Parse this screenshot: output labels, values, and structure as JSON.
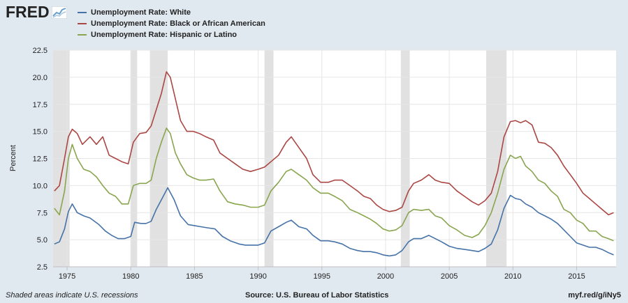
{
  "header": {
    "logo_text": "FRED",
    "logo_icon": "chart-line-icon"
  },
  "footer": {
    "recession_note": "Shaded areas indicate U.S. recessions",
    "source": "Source: U.S. Bureau of Labor Statistics",
    "short_url": "myf.red/g/iNy5"
  },
  "chart_data": {
    "type": "line",
    "title": "",
    "xlabel": "",
    "ylabel": "Percent",
    "xlim": [
      1973.9,
      2018.1
    ],
    "ylim": [
      2.5,
      22.5
    ],
    "yticks": [
      "2.5",
      "5.0",
      "7.5",
      "10.0",
      "12.5",
      "15.0",
      "17.5",
      "20.0",
      "22.5"
    ],
    "xticks": [
      "1975",
      "1980",
      "1985",
      "1990",
      "1995",
      "2000",
      "2005",
      "2010",
      "2015"
    ],
    "grid": true,
    "legend_position": "top-left",
    "recessions": [
      [
        1973.9,
        1975.2
      ],
      [
        1980.0,
        1980.5
      ],
      [
        1981.5,
        1982.9
      ],
      [
        1990.5,
        1991.2
      ],
      [
        2001.2,
        2001.9
      ],
      [
        2007.9,
        2009.5
      ]
    ],
    "series": [
      {
        "name": "Unemployment Rate: White",
        "color": "#4572a7",
        "points": [
          [
            1974.0,
            4.6
          ],
          [
            1974.4,
            4.8
          ],
          [
            1974.8,
            6.0
          ],
          [
            1975.1,
            7.6
          ],
          [
            1975.4,
            8.3
          ],
          [
            1975.8,
            7.5
          ],
          [
            1976.3,
            7.2
          ],
          [
            1976.8,
            7.0
          ],
          [
            1977.5,
            6.4
          ],
          [
            1978.0,
            5.8
          ],
          [
            1978.5,
            5.4
          ],
          [
            1979.0,
            5.1
          ],
          [
            1979.5,
            5.1
          ],
          [
            1980.0,
            5.3
          ],
          [
            1980.3,
            6.6
          ],
          [
            1980.8,
            6.5
          ],
          [
            1981.2,
            6.5
          ],
          [
            1981.6,
            6.7
          ],
          [
            1982.0,
            7.8
          ],
          [
            1982.5,
            8.9
          ],
          [
            1982.9,
            9.8
          ],
          [
            1983.4,
            8.7
          ],
          [
            1983.9,
            7.2
          ],
          [
            1984.5,
            6.4
          ],
          [
            1985.0,
            6.3
          ],
          [
            1985.5,
            6.2
          ],
          [
            1986.0,
            6.1
          ],
          [
            1986.6,
            6.0
          ],
          [
            1987.2,
            5.3
          ],
          [
            1987.8,
            4.9
          ],
          [
            1988.5,
            4.6
          ],
          [
            1989.0,
            4.5
          ],
          [
            1989.5,
            4.5
          ],
          [
            1990.0,
            4.5
          ],
          [
            1990.5,
            4.7
          ],
          [
            1991.0,
            5.8
          ],
          [
            1991.6,
            6.2
          ],
          [
            1992.2,
            6.6
          ],
          [
            1992.6,
            6.8
          ],
          [
            1993.2,
            6.2
          ],
          [
            1993.8,
            6.0
          ],
          [
            1994.3,
            5.4
          ],
          [
            1994.9,
            4.9
          ],
          [
            1995.5,
            4.9
          ],
          [
            1996.0,
            4.8
          ],
          [
            1996.6,
            4.6
          ],
          [
            1997.2,
            4.2
          ],
          [
            1997.8,
            4.0
          ],
          [
            1998.3,
            3.9
          ],
          [
            1998.8,
            3.9
          ],
          [
            1999.3,
            3.8
          ],
          [
            1999.8,
            3.6
          ],
          [
            2000.3,
            3.5
          ],
          [
            2000.8,
            3.6
          ],
          [
            2001.3,
            4.0
          ],
          [
            2001.8,
            4.8
          ],
          [
            2002.2,
            5.1
          ],
          [
            2002.8,
            5.1
          ],
          [
            2003.4,
            5.4
          ],
          [
            2003.9,
            5.1
          ],
          [
            2004.4,
            4.8
          ],
          [
            2005.0,
            4.4
          ],
          [
            2005.6,
            4.2
          ],
          [
            2006.2,
            4.1
          ],
          [
            2006.8,
            4.0
          ],
          [
            2007.3,
            3.9
          ],
          [
            2007.8,
            4.2
          ],
          [
            2008.3,
            4.6
          ],
          [
            2008.8,
            5.9
          ],
          [
            2009.3,
            7.9
          ],
          [
            2009.8,
            9.1
          ],
          [
            2010.2,
            8.8
          ],
          [
            2010.6,
            8.7
          ],
          [
            2011.0,
            8.3
          ],
          [
            2011.5,
            8.0
          ],
          [
            2012.0,
            7.5
          ],
          [
            2012.5,
            7.2
          ],
          [
            2013.0,
            6.9
          ],
          [
            2013.5,
            6.5
          ],
          [
            2014.0,
            5.9
          ],
          [
            2014.5,
            5.3
          ],
          [
            2015.0,
            4.7
          ],
          [
            2015.5,
            4.5
          ],
          [
            2016.0,
            4.3
          ],
          [
            2016.5,
            4.3
          ],
          [
            2017.0,
            4.1
          ],
          [
            2017.5,
            3.8
          ],
          [
            2017.9,
            3.6
          ]
        ]
      },
      {
        "name": "Unemployment Rate: Black or African American",
        "color": "#aa4643",
        "points": [
          [
            1974.0,
            9.5
          ],
          [
            1974.4,
            10.0
          ],
          [
            1974.8,
            12.5
          ],
          [
            1975.1,
            14.5
          ],
          [
            1975.4,
            15.2
          ],
          [
            1975.8,
            14.8
          ],
          [
            1976.2,
            13.8
          ],
          [
            1976.8,
            14.5
          ],
          [
            1977.3,
            13.8
          ],
          [
            1977.8,
            14.5
          ],
          [
            1978.3,
            12.8
          ],
          [
            1978.8,
            12.5
          ],
          [
            1979.3,
            12.2
          ],
          [
            1979.8,
            12.0
          ],
          [
            1980.2,
            14.0
          ],
          [
            1980.7,
            14.8
          ],
          [
            1981.2,
            14.9
          ],
          [
            1981.6,
            15.5
          ],
          [
            1982.0,
            17.0
          ],
          [
            1982.4,
            18.5
          ],
          [
            1982.8,
            20.5
          ],
          [
            1983.1,
            20.0
          ],
          [
            1983.5,
            18.0
          ],
          [
            1983.9,
            16.0
          ],
          [
            1984.4,
            15.0
          ],
          [
            1984.9,
            15.0
          ],
          [
            1985.4,
            14.8
          ],
          [
            1985.9,
            14.5
          ],
          [
            1986.5,
            14.2
          ],
          [
            1987.0,
            13.0
          ],
          [
            1987.6,
            12.5
          ],
          [
            1988.2,
            12.0
          ],
          [
            1988.8,
            11.5
          ],
          [
            1989.4,
            11.3
          ],
          [
            1990.0,
            11.5
          ],
          [
            1990.5,
            11.7
          ],
          [
            1991.0,
            12.2
          ],
          [
            1991.6,
            12.8
          ],
          [
            1992.2,
            14.0
          ],
          [
            1992.6,
            14.5
          ],
          [
            1993.2,
            13.5
          ],
          [
            1993.8,
            12.5
          ],
          [
            1994.3,
            11.0
          ],
          [
            1994.9,
            10.3
          ],
          [
            1995.5,
            10.3
          ],
          [
            1996.0,
            10.5
          ],
          [
            1996.6,
            10.5
          ],
          [
            1997.2,
            10.0
          ],
          [
            1997.8,
            9.5
          ],
          [
            1998.3,
            9.0
          ],
          [
            1998.8,
            8.8
          ],
          [
            1999.3,
            8.2
          ],
          [
            1999.8,
            7.8
          ],
          [
            2000.3,
            7.6
          ],
          [
            2000.8,
            7.7
          ],
          [
            2001.3,
            8.0
          ],
          [
            2001.8,
            9.5
          ],
          [
            2002.2,
            10.2
          ],
          [
            2002.8,
            10.5
          ],
          [
            2003.4,
            11.0
          ],
          [
            2003.9,
            10.5
          ],
          [
            2004.4,
            10.3
          ],
          [
            2005.0,
            10.2
          ],
          [
            2005.6,
            9.5
          ],
          [
            2006.2,
            9.0
          ],
          [
            2006.8,
            8.5
          ],
          [
            2007.3,
            8.2
          ],
          [
            2007.8,
            8.6
          ],
          [
            2008.3,
            9.3
          ],
          [
            2008.8,
            11.3
          ],
          [
            2009.3,
            14.5
          ],
          [
            2009.8,
            15.9
          ],
          [
            2010.2,
            16.0
          ],
          [
            2010.6,
            15.8
          ],
          [
            2011.0,
            16.0
          ],
          [
            2011.5,
            15.6
          ],
          [
            2012.0,
            14.0
          ],
          [
            2012.5,
            13.9
          ],
          [
            2013.0,
            13.5
          ],
          [
            2013.5,
            12.8
          ],
          [
            2014.0,
            11.8
          ],
          [
            2014.5,
            11.0
          ],
          [
            2015.0,
            10.2
          ],
          [
            2015.5,
            9.3
          ],
          [
            2016.0,
            8.8
          ],
          [
            2016.5,
            8.3
          ],
          [
            2017.0,
            7.8
          ],
          [
            2017.5,
            7.3
          ],
          [
            2017.9,
            7.5
          ]
        ]
      },
      {
        "name": "Unemployment Rate: Hispanic or Latino",
        "color": "#89a54e",
        "points": [
          [
            1974.0,
            7.9
          ],
          [
            1974.4,
            7.3
          ],
          [
            1974.8,
            9.5
          ],
          [
            1975.1,
            12.5
          ],
          [
            1975.4,
            13.8
          ],
          [
            1975.8,
            12.5
          ],
          [
            1976.3,
            11.5
          ],
          [
            1976.8,
            11.3
          ],
          [
            1977.3,
            10.8
          ],
          [
            1977.8,
            10.0
          ],
          [
            1978.3,
            9.3
          ],
          [
            1978.8,
            9.0
          ],
          [
            1979.3,
            8.3
          ],
          [
            1979.8,
            8.3
          ],
          [
            1980.2,
            10.0
          ],
          [
            1980.7,
            10.2
          ],
          [
            1981.2,
            10.2
          ],
          [
            1981.6,
            10.5
          ],
          [
            1982.0,
            12.5
          ],
          [
            1982.4,
            14.0
          ],
          [
            1982.8,
            15.3
          ],
          [
            1983.1,
            14.8
          ],
          [
            1983.5,
            13.0
          ],
          [
            1983.9,
            12.0
          ],
          [
            1984.4,
            11.0
          ],
          [
            1984.9,
            10.7
          ],
          [
            1985.4,
            10.5
          ],
          [
            1985.9,
            10.5
          ],
          [
            1986.5,
            10.6
          ],
          [
            1987.0,
            9.5
          ],
          [
            1987.6,
            8.5
          ],
          [
            1988.2,
            8.3
          ],
          [
            1988.8,
            8.2
          ],
          [
            1989.4,
            8.0
          ],
          [
            1990.0,
            8.0
          ],
          [
            1990.5,
            8.2
          ],
          [
            1991.0,
            9.5
          ],
          [
            1991.6,
            10.3
          ],
          [
            1992.2,
            11.3
          ],
          [
            1992.6,
            11.5
          ],
          [
            1993.2,
            11.0
          ],
          [
            1993.8,
            10.5
          ],
          [
            1994.3,
            9.8
          ],
          [
            1994.9,
            9.3
          ],
          [
            1995.5,
            9.3
          ],
          [
            1996.0,
            9.0
          ],
          [
            1996.6,
            8.6
          ],
          [
            1997.2,
            7.8
          ],
          [
            1997.8,
            7.5
          ],
          [
            1998.3,
            7.2
          ],
          [
            1998.8,
            6.9
          ],
          [
            1999.3,
            6.5
          ],
          [
            1999.8,
            6.0
          ],
          [
            2000.3,
            5.8
          ],
          [
            2000.8,
            5.9
          ],
          [
            2001.3,
            6.3
          ],
          [
            2001.8,
            7.5
          ],
          [
            2002.2,
            7.8
          ],
          [
            2002.8,
            7.7
          ],
          [
            2003.4,
            7.8
          ],
          [
            2003.9,
            7.2
          ],
          [
            2004.4,
            7.0
          ],
          [
            2005.0,
            6.3
          ],
          [
            2005.6,
            5.9
          ],
          [
            2006.2,
            5.4
          ],
          [
            2006.8,
            5.2
          ],
          [
            2007.3,
            5.5
          ],
          [
            2007.8,
            6.3
          ],
          [
            2008.3,
            7.5
          ],
          [
            2008.8,
            9.3
          ],
          [
            2009.3,
            11.5
          ],
          [
            2009.8,
            12.8
          ],
          [
            2010.2,
            12.5
          ],
          [
            2010.6,
            12.7
          ],
          [
            2011.0,
            11.8
          ],
          [
            2011.5,
            11.3
          ],
          [
            2012.0,
            10.5
          ],
          [
            2012.5,
            10.2
          ],
          [
            2013.0,
            9.5
          ],
          [
            2013.5,
            9.0
          ],
          [
            2014.0,
            7.8
          ],
          [
            2014.5,
            7.5
          ],
          [
            2015.0,
            6.8
          ],
          [
            2015.5,
            6.5
          ],
          [
            2016.0,
            5.8
          ],
          [
            2016.5,
            5.8
          ],
          [
            2017.0,
            5.3
          ],
          [
            2017.5,
            5.1
          ],
          [
            2017.9,
            4.9
          ]
        ]
      }
    ]
  }
}
